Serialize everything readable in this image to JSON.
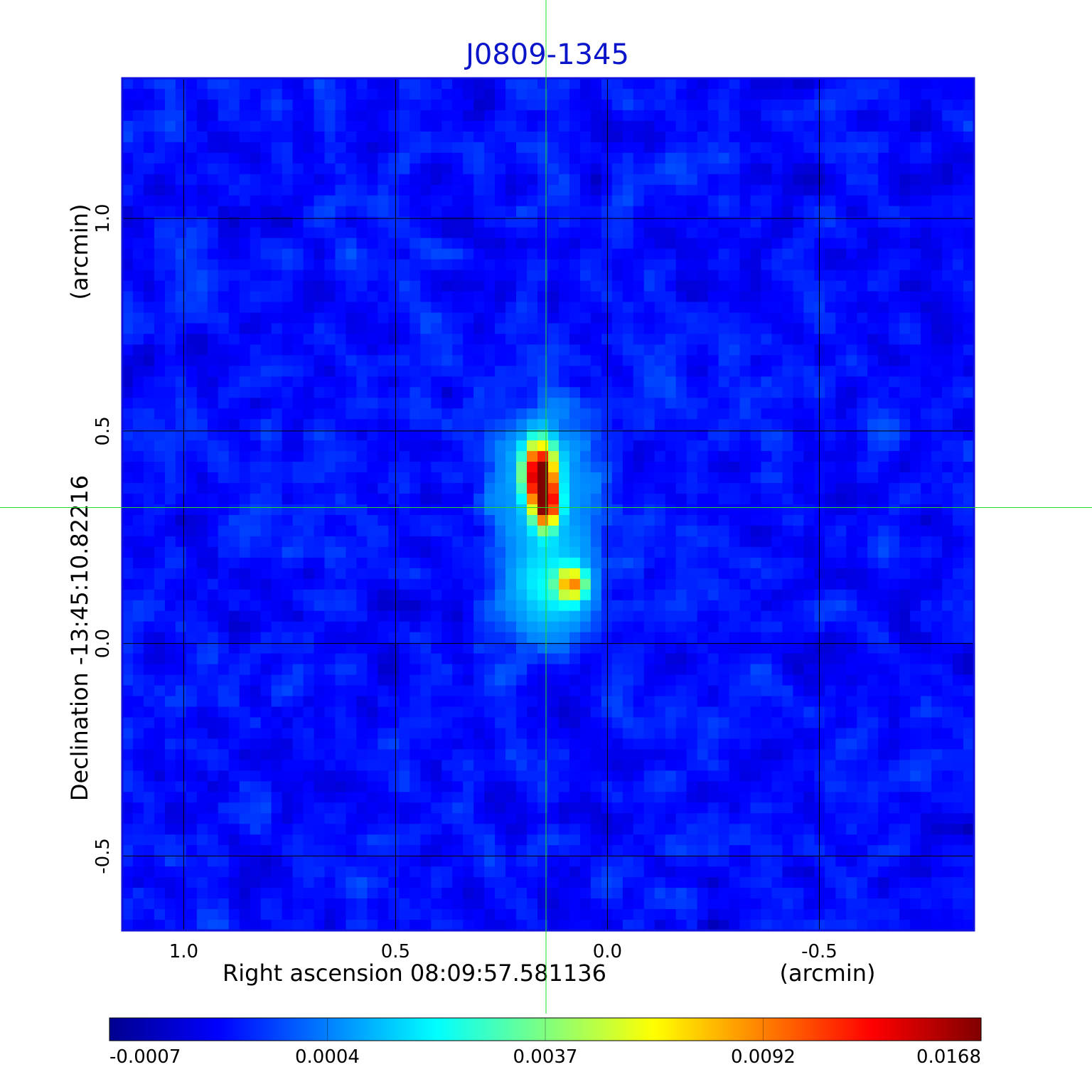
{
  "chart_data": {
    "type": "heatmap",
    "title": "J0809-1345",
    "xlabel": "Right ascension  08:09:57.581136",
    "xunit": "(arcmin)",
    "ylabel": "Declination  -13:45:10.82216",
    "yunit": "(arcmin)",
    "x_ticks": [
      "1.0",
      "0.5",
      "0.0",
      "-0.5"
    ],
    "x_tick_values": [
      1.0,
      0.5,
      0.0,
      -0.5
    ],
    "y_ticks": [
      "1.0",
      "0.5",
      "0.0",
      "-0.5"
    ],
    "y_tick_values": [
      1.0,
      0.5,
      0.0,
      -0.5
    ],
    "xlim": [
      1.145,
      -0.865
    ],
    "ylim": [
      -0.675,
      1.33
    ],
    "grid": true,
    "crosshair": {
      "x": 0.145,
      "y": 0.32,
      "color": "#22dd22"
    },
    "colorbar": {
      "ticks": [
        "-0.0007",
        "0.0004",
        "0.0037",
        "0.0092",
        "0.0168"
      ],
      "tick_values": [
        -0.0007,
        0.0004,
        0.0037,
        0.0092,
        0.0168
      ],
      "colormap": "jet"
    },
    "sources": [
      {
        "x": 0.16,
        "y": 0.4,
        "peak": 0.0168,
        "sigma_x": 0.022,
        "sigma_y": 0.045
      },
      {
        "x": 0.145,
        "y": 0.33,
        "peak": 0.015,
        "sigma_x": 0.018,
        "sigma_y": 0.035
      },
      {
        "x": 0.155,
        "y": 0.38,
        "peak": 0.0015,
        "sigma_x": 0.075,
        "sigma_y": 0.11
      },
      {
        "x": 0.085,
        "y": 0.14,
        "peak": 0.0085,
        "sigma_x": 0.022,
        "sigma_y": 0.025
      },
      {
        "x": 0.14,
        "y": 0.13,
        "peak": 0.002,
        "sigma_x": 0.065,
        "sigma_y": 0.08
      },
      {
        "x": 0.19,
        "y": 0.58,
        "peak": -0.0004,
        "sigma_x": 0.025,
        "sigma_y": 0.03
      }
    ],
    "noise_level": 0.00045,
    "background_level": -0.0001,
    "colors": {
      "frame": "#1010dd",
      "grid": "#000000"
    }
  }
}
